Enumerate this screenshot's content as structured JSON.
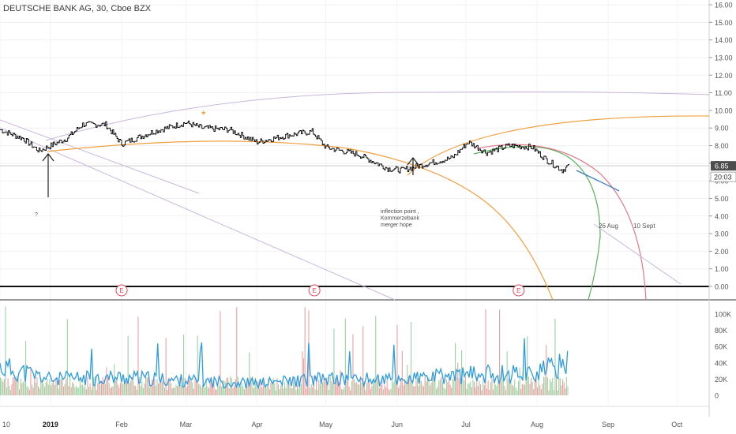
{
  "header": {
    "title": "DEUTSCHE BANK AG, 30, Cboe BZX"
  },
  "price_scale": {
    "labels": [
      "16.00",
      "15.00",
      "14.00",
      "13.00",
      "12.00",
      "11.00",
      "10.00",
      "9.00",
      "8.00",
      "7.00",
      "6.00",
      "5.00",
      "4.00",
      "3.00",
      "2.00",
      "1.00",
      "0.00"
    ],
    "last_price": "6.85",
    "countdown": "20:03"
  },
  "volume_scale": {
    "labels": [
      "100K",
      "80K",
      "60K",
      "40K",
      "20K",
      "0"
    ]
  },
  "time_axis": {
    "labels": [
      "10",
      "2019",
      "Feb",
      "Mar",
      "Apr",
      "May",
      "Jun",
      "Jul",
      "Aug",
      "Sep",
      "Oct"
    ]
  },
  "annotations": {
    "question_mark": "?",
    "inflection": [
      "inflection point ,",
      "Kommerzebank",
      "merger hope"
    ],
    "aug_label": "26 Aug",
    "sept_label": "10 Sept"
  },
  "earnings_marker": "E",
  "colors": {
    "price_line": "#000000",
    "orange_arc": "#f0a040",
    "purple_line": "#c9b6dc",
    "green_arc": "#5ab05a",
    "red_arc": "#e07a8a",
    "blue_curve": "#3a80c0",
    "volume_ma": "#2e9be0",
    "volume_up": "#9cd3a2",
    "volume_down": "#e7a3a3",
    "earnings": "#e0455b",
    "axis_text": "#555555"
  },
  "chart_data": {
    "type": "line",
    "symbol": "DEUTSCHE BANK AG",
    "timeframe": "30",
    "exchange": "Cboe BZX",
    "x_range": [
      "2018-12-10",
      "2019-10-15"
    ],
    "ylim": [
      0,
      16
    ],
    "last_price": 6.85,
    "price_series": {
      "x": [
        "2018-12-10",
        "2018-12-20",
        "2018-12-27",
        "2019-01-08",
        "2019-01-15",
        "2019-01-25",
        "2019-02-01",
        "2019-02-15",
        "2019-03-01",
        "2019-03-08",
        "2019-03-20",
        "2019-04-01",
        "2019-04-15",
        "2019-04-25",
        "2019-05-01",
        "2019-05-15",
        "2019-05-28",
        "2019-06-03",
        "2019-06-15",
        "2019-06-25",
        "2019-07-02",
        "2019-07-10",
        "2019-07-20",
        "2019-07-30",
        "2019-08-05",
        "2019-08-12",
        "2019-08-15"
      ],
      "y": [
        8.9,
        8.4,
        7.7,
        8.4,
        9.2,
        9.2,
        8.1,
        8.8,
        9.3,
        9.0,
        8.9,
        8.2,
        8.6,
        8.8,
        7.9,
        7.5,
        6.7,
        6.6,
        7.0,
        7.3,
        8.2,
        7.6,
        8.0,
        7.9,
        7.2,
        6.6,
        6.9
      ]
    },
    "volume_ylim": [
      0,
      110000
    ],
    "volume_ma_series": {
      "x": [
        "2018-12-10",
        "2019-01-01",
        "2019-02-01",
        "2019-03-01",
        "2019-04-01",
        "2019-05-01",
        "2019-06-01",
        "2019-07-01",
        "2019-08-01",
        "2019-08-15"
      ],
      "y": [
        35000,
        20000,
        22000,
        18000,
        15000,
        20000,
        19000,
        25000,
        28000,
        40000
      ]
    },
    "annotations": [
      {
        "text": "inflection point , Kommerzebank merger hope",
        "x": "2019-06-03",
        "y": 5.3
      },
      {
        "text": "26 Aug",
        "x": "2019-08-26",
        "y": 3.7
      },
      {
        "text": "10 Sept",
        "x": "2019-09-10",
        "y": 3.7
      }
    ],
    "earnings_dates": [
      "2019-02-01",
      "2019-04-26",
      "2019-07-24"
    ]
  }
}
